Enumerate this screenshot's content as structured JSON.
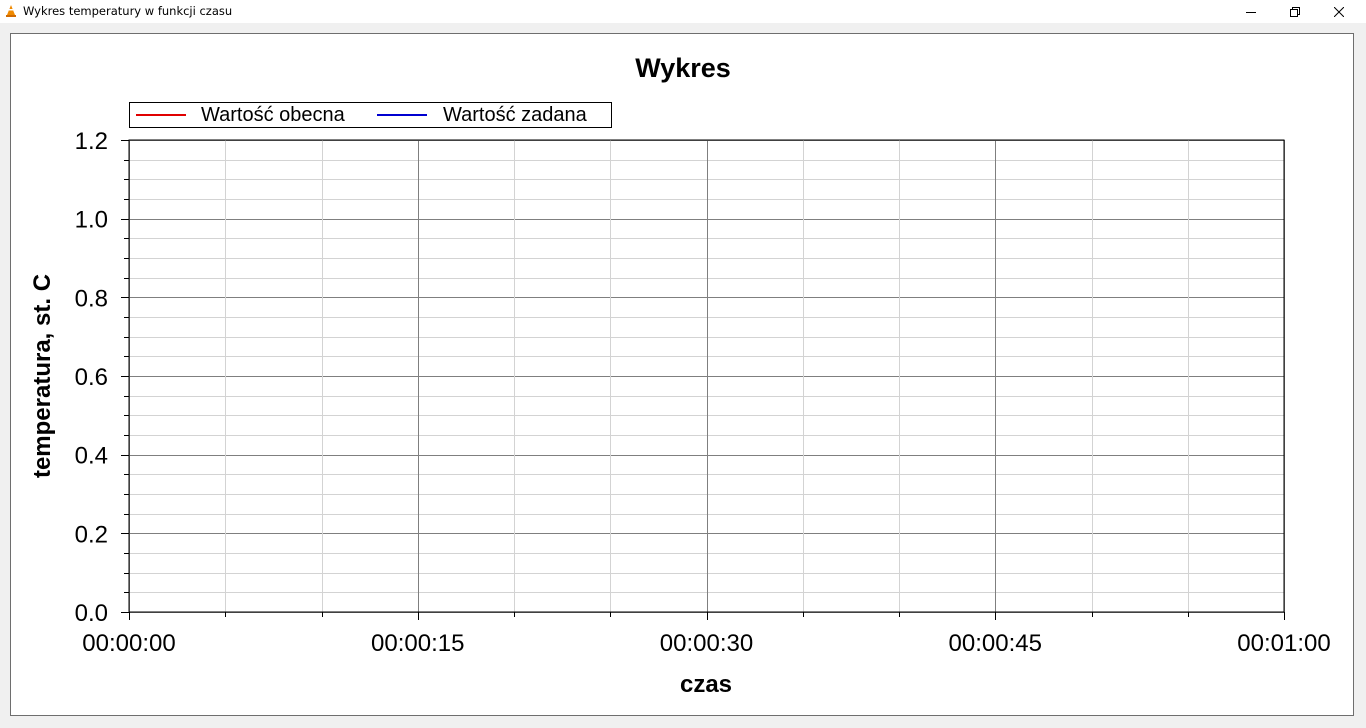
{
  "window": {
    "title": "Wykres temperatury w funkcji czasu",
    "app_icon": "vlc-cone-icon",
    "controls": [
      "minimize-icon",
      "restore-icon",
      "close-icon"
    ]
  },
  "chart_data": {
    "type": "line",
    "title": "Wykres",
    "xlabel": "czas",
    "ylabel": "temperatura, st. C",
    "xlim": [
      "00:00:00",
      "00:01:00"
    ],
    "ylim": [
      0.0,
      1.2
    ],
    "x_ticks": [
      "00:00:00",
      "00:00:15",
      "00:00:30",
      "00:00:45",
      "00:01:00"
    ],
    "y_ticks": [
      "0.0",
      "0.2",
      "0.4",
      "0.6",
      "0.8",
      "1.0",
      "1.2"
    ],
    "grid": true,
    "legend_position": "top-left",
    "series": [
      {
        "name": "Wartość obecna",
        "color": "#e00000",
        "x": [],
        "y": []
      },
      {
        "name": "Wartość zadana",
        "color": "#0000d0",
        "x": [],
        "y": []
      }
    ]
  }
}
